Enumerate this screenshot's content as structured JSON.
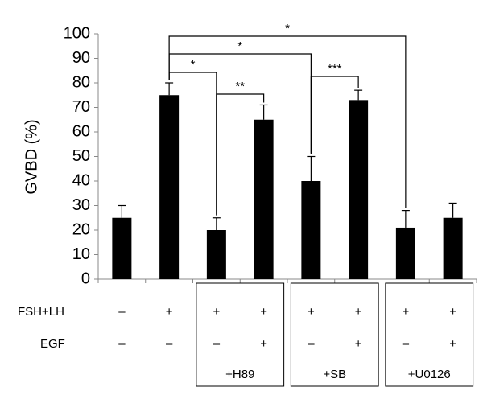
{
  "chart_data": {
    "type": "bar",
    "ylabel": "GVBD (%)",
    "categories": [
      null,
      null,
      null,
      null,
      null,
      null,
      null,
      null
    ],
    "values": [
      25,
      75,
      20,
      65,
      40,
      73,
      21,
      25
    ],
    "errors": [
      5,
      5,
      5,
      6,
      10,
      4,
      7,
      6
    ],
    "color": "#000000",
    "ylim": [
      0,
      100
    ],
    "yticks": [
      0,
      10,
      20,
      30,
      40,
      50,
      60,
      70,
      80,
      90,
      100
    ],
    "annotations": [
      "*",
      "*",
      "*",
      "**",
      "***"
    ],
    "table": {
      "rows": [
        {
          "label": "FSH+LH",
          "cells": [
            "–",
            "+",
            "+",
            "+",
            "+",
            "+",
            "+",
            "+"
          ]
        },
        {
          "label": "EGF",
          "cells": [
            "–",
            "–",
            "–",
            "+",
            "–",
            "+",
            "–",
            "+"
          ]
        }
      ],
      "groups": [
        "+H89",
        "+SB",
        "+U0126"
      ]
    }
  }
}
